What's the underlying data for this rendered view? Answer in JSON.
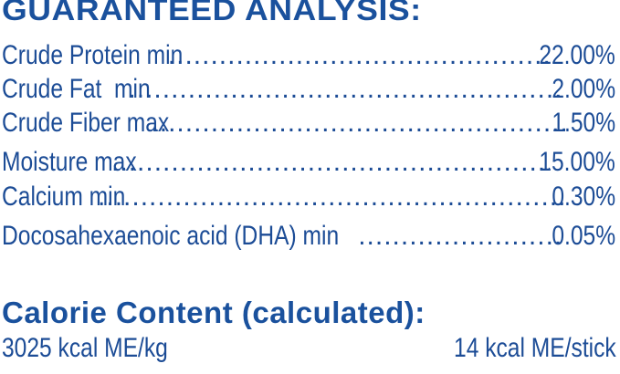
{
  "guaranteed_analysis": {
    "title": "GUARANTEED ANALYSIS:",
    "rows": [
      {
        "label": "Crude Protein min",
        "value": "22.00%"
      },
      {
        "label": "Crude Fat  min",
        "value": "2.00%"
      },
      {
        "label": "Crude Fiber max",
        "value": "1.50%"
      },
      {
        "label": "Moisture max",
        "value": "15.00%"
      },
      {
        "label": "Calcium min",
        "value": "0.30%"
      },
      {
        "label": "Docosahexaenoic acid (DHA) min",
        "value": "0.05%"
      }
    ]
  },
  "calorie_content": {
    "title": "Calorie Content (calculated):",
    "per_kg": "3025 kcal ME/kg",
    "per_stick": "14 kcal ME/stick"
  },
  "colors": {
    "text": "#1c4c96",
    "heading": "#1a519d"
  }
}
